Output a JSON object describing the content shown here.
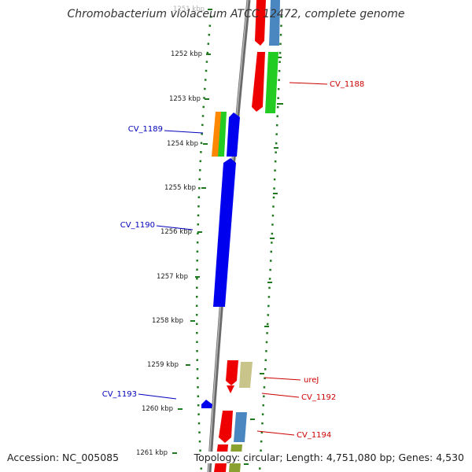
{
  "title": "Chromobacterium violaceum ATCC 12472, complete genome",
  "footer": {
    "accession": "Accession: NC_005085",
    "topology": "Topology: circular; Length: 4,751,080 bp; Genes: 4,530"
  },
  "ruler": {
    "ticks": [
      "1251 kbp",
      "1252 kbp",
      "1253 kbp",
      "1254 kbp",
      "1255 kbp",
      "1256 kbp",
      "1257 kbp",
      "1258 kbp",
      "1259 kbp",
      "1260 kbp",
      "1261 kbp"
    ]
  },
  "gene_labels": {
    "cv1188": "CV_1188",
    "cv1189": "CV_1189",
    "cv1190": "CV_1190",
    "urej": "ureJ",
    "cv1192": "CV_1192",
    "cv1193": "CV_1193",
    "cv1194": "CV_1194"
  },
  "colors": {
    "forward_label": "#cc0000",
    "reverse_label": "#0000bb",
    "backbone": "#808080",
    "gene_red": "#ee0000",
    "gene_blue": "#0000ee",
    "gene_green": "#22cc22",
    "gene_steelblue": "#4a86c0",
    "gene_orange": "#ff8800",
    "gene_khaki": "#c8c48a",
    "gene_olive": "#8aa030",
    "dots": "#1f7a1f"
  }
}
